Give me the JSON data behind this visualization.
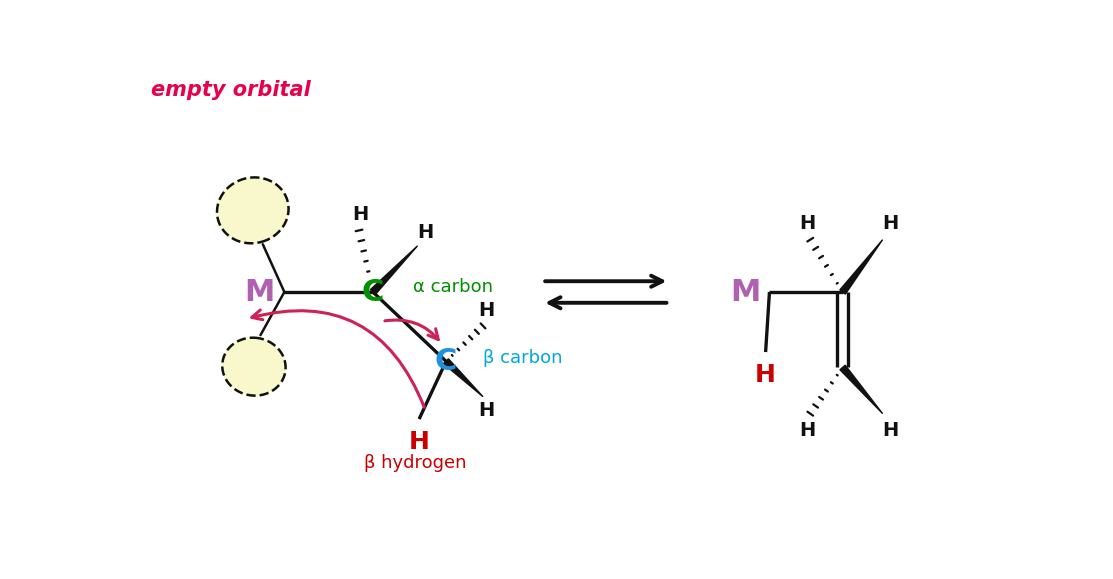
{
  "bg_color": "#ffffff",
  "empty_orbital_text": "empty orbital",
  "empty_orbital_color": "#e8004a",
  "alpha_carbon_label": "α carbon",
  "alpha_carbon_color": "#009000",
  "beta_carbon_label": "β carbon",
  "beta_carbon_color": "#00aadd",
  "beta_hydrogen_label": "β hydrogen",
  "beta_hydrogen_color": "#cc0000",
  "M_color": "#b060b0",
  "H_color_red": "#cc0000",
  "H_color_black": "#111111",
  "C_alpha_color": "#009000",
  "C_beta_color": "#2090dd",
  "arrow_color": "#cc2255",
  "orbital_fill": "#f8f8cc",
  "orbital_stroke": "#111111",
  "bond_color": "#111111",
  "eq_arrow_color": "#111111"
}
